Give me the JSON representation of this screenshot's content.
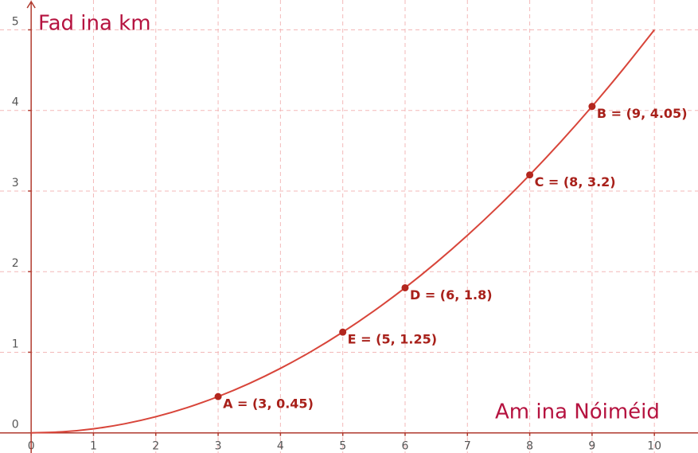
{
  "chart_data": {
    "type": "line",
    "xlabel": "Am ina Nóiméid",
    "ylabel": "Fad ina km",
    "xlim": [
      -0.5,
      10.7
    ],
    "ylim": [
      -0.25,
      5.37
    ],
    "xticks": [
      0,
      1,
      2,
      3,
      4,
      5,
      6,
      7,
      8,
      9,
      10
    ],
    "yticks": [
      0,
      1,
      2,
      3,
      4,
      5
    ],
    "grid": true,
    "series": [
      {
        "color": "#d8453a",
        "x": [
          0,
          0.5,
          1,
          1.5,
          2,
          2.5,
          3,
          3.5,
          4,
          4.5,
          5,
          5.5,
          6,
          6.5,
          7,
          7.5,
          8,
          8.5,
          9,
          9.5,
          10
        ],
        "values": [
          0,
          0.0125,
          0.05,
          0.1125,
          0.2,
          0.3125,
          0.45,
          0.6125,
          0.8,
          1.0125,
          1.25,
          1.5125,
          1.8,
          2.1125,
          2.45,
          2.8125,
          3.2,
          3.6125,
          4.05,
          4.5125,
          5
        ]
      }
    ],
    "points": {
      "color": "#b3261e",
      "x": [
        3,
        5,
        6,
        8,
        9
      ],
      "values": [
        0.45,
        1.25,
        1.8,
        3.2,
        4.05
      ],
      "labels": [
        "A = (3, 0.45)",
        "E = (5, 1.25)",
        "D = (6, 1.8)",
        "C = (8, 3.2)",
        "B = (9, 4.05)"
      ]
    }
  }
}
